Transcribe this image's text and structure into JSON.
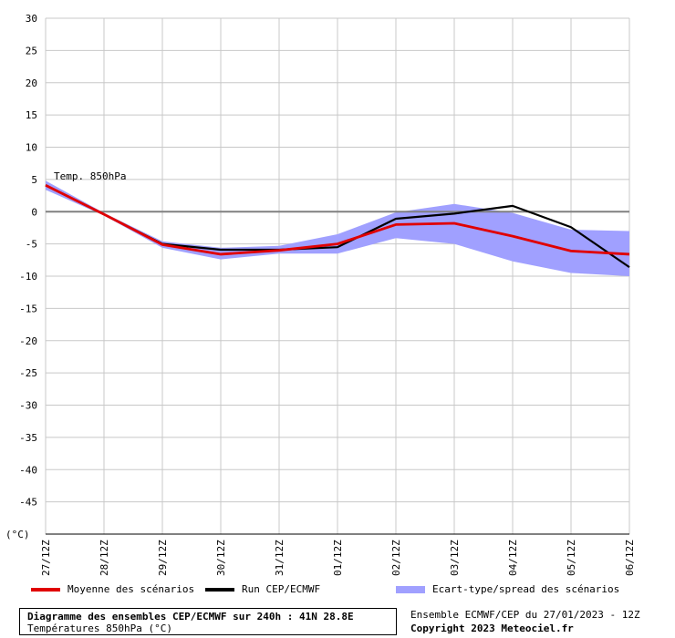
{
  "chart_data": {
    "type": "line",
    "title": "Diagramme des ensembles CEP/ECMWF sur 240h : 41N 28.8E",
    "subtitle": "Températures 850hPa (°C)",
    "annotation": "Temp. 850hPa",
    "ylabel": "(°C)",
    "ylim": [
      -50,
      30
    ],
    "yticks": [
      30,
      25,
      20,
      15,
      10,
      5,
      0,
      -5,
      -10,
      -15,
      -20,
      -25,
      -30,
      -35,
      -40,
      -45
    ],
    "ytick_labels": [
      "30",
      "25",
      "20",
      "15",
      "10",
      "5",
      "0",
      "-5",
      "-10",
      "-15",
      "-20",
      "-25",
      "-30",
      "-35",
      "-40",
      "-45"
    ],
    "categories": [
      "27/12Z",
      "28/12Z",
      "29/12Z",
      "30/12Z",
      "31/12Z",
      "01/12Z",
      "02/12Z",
      "03/12Z",
      "04/12Z",
      "05/12Z",
      "06/12Z"
    ],
    "x": [
      0,
      1,
      2,
      3,
      4,
      5,
      6,
      7,
      8,
      9,
      10
    ],
    "grid": true,
    "legend_position": "bottom",
    "series": [
      {
        "name": "Ecart-type/spread des scénarios",
        "kind": "band",
        "color": "#a0a0ff",
        "upper": [
          4.8,
          -0.2,
          -4.6,
          -5.6,
          -5.3,
          -3.5,
          -0.1,
          1.2,
          -0.2,
          -2.8,
          -3.0
        ],
        "lower": [
          3.4,
          -0.6,
          -5.6,
          -7.4,
          -6.5,
          -6.5,
          -4.1,
          -5.0,
          -7.7,
          -9.5,
          -10.0
        ]
      },
      {
        "name": "Run CEP/ECMWF",
        "kind": "line",
        "color": "#000000",
        "x": [
          0,
          1,
          2,
          3,
          4,
          5,
          6,
          7,
          8,
          9,
          10
        ],
        "values": [
          4.1,
          -0.4,
          -5.0,
          -5.9,
          -5.9,
          -5.5,
          -1.1,
          -0.3,
          0.9,
          -2.4,
          -8.6
        ]
      },
      {
        "name": "Moyenne des scénarios",
        "kind": "line",
        "color": "#e00000",
        "x": [
          0,
          1,
          2,
          3,
          4,
          5,
          6,
          7,
          8,
          9,
          10
        ],
        "values": [
          4.1,
          -0.4,
          -5.1,
          -6.6,
          -6.0,
          -5.0,
          -2.0,
          -1.8,
          -3.8,
          -6.1,
          -6.6
        ]
      }
    ]
  },
  "footer": {
    "title": "Diagramme des ensembles CEP/ECMWF sur 240h : 41N 28.8E",
    "subtitle": "Températures 850hPa (°C)",
    "ensemble_info": "Ensemble ECMWF/CEP du 27/01/2023 - 12Z",
    "copyright": "Copyright 2023 Meteociel.fr"
  },
  "legend": [
    {
      "label": "Moyenne des scénarios",
      "color": "#e00000"
    },
    {
      "label": "Run CEP/ECMWF",
      "color": "#000000"
    },
    {
      "label": "Ecart-type/spread des scénarios",
      "color": "#a0a0ff"
    }
  ]
}
